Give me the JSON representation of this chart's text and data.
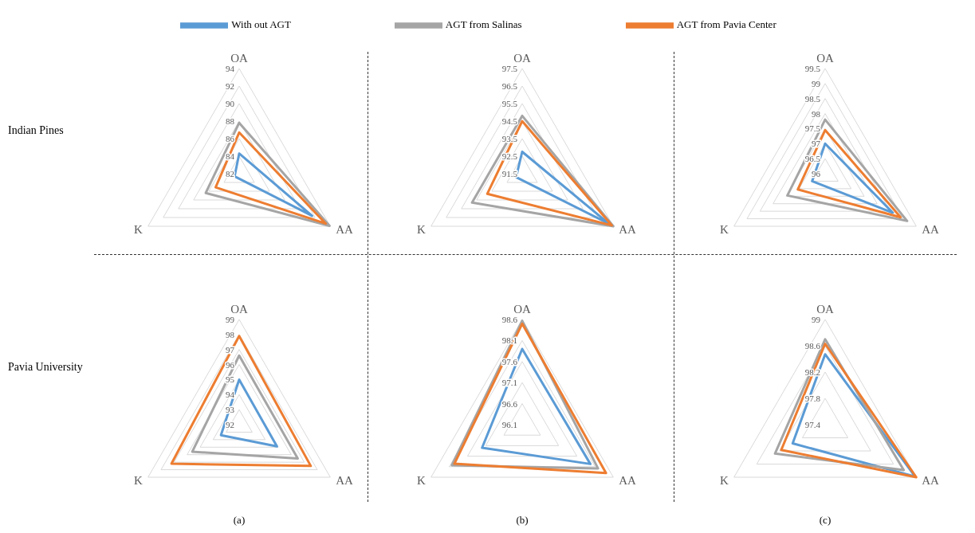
{
  "chart_data": [
    {
      "type": "radar",
      "ylabel": "Indian Pines",
      "legend": "top",
      "categories": [
        "OA",
        "AA",
        "K"
      ],
      "ylim": [
        82,
        94
      ],
      "yticks": [
        82,
        84,
        86,
        88,
        90,
        92,
        94
      ],
      "series": [
        {
          "name": "With out AGT",
          "color": "#5b9bd5",
          "values": [
            84.3,
            91.6,
            82.6
          ]
        },
        {
          "name": "AGT from Salinas",
          "color": "#a5a5a5",
          "values": [
            87.8,
            93.9,
            86.4
          ]
        },
        {
          "name": "AGT from Pavia Center",
          "color": "#ed7d31",
          "values": [
            86.7,
            93.4,
            85.1
          ]
        }
      ]
    },
    {
      "type": "radar",
      "categories": [
        "OA",
        "AA",
        "K"
      ],
      "ylim": [
        91.5,
        97.5
      ],
      "yticks": [
        91.5,
        92.5,
        93.5,
        94.5,
        95.5,
        96.5,
        97.5
      ],
      "series": [
        {
          "color": "#5b9bd5",
          "values": [
            92.75,
            97.2,
            91.9
          ]
        },
        {
          "color": "#a5a5a5",
          "values": [
            94.8,
            97.5,
            94.8
          ]
        },
        {
          "color": "#ed7d31",
          "values": [
            94.5,
            97.4,
            93.8
          ]
        }
      ]
    },
    {
      "type": "radar",
      "categories": [
        "OA",
        "AA",
        "K"
      ],
      "ylim": [
        96,
        99.5
      ],
      "yticks": [
        96,
        96.5,
        97,
        97.5,
        98,
        98.5,
        99,
        99.5
      ],
      "series": [
        {
          "color": "#5b9bd5",
          "values": [
            97.0,
            98.6,
            96.5
          ]
        },
        {
          "color": "#a5a5a5",
          "values": [
            97.8,
            99.15,
            97.45
          ]
        },
        {
          "color": "#ed7d31",
          "values": [
            97.45,
            98.9,
            97.05
          ]
        }
      ]
    },
    {
      "type": "radar",
      "ylabel": "Pavia University",
      "xlabel": "(a)",
      "categories": [
        "OA",
        "AA",
        "K"
      ],
      "ylim": [
        92,
        99
      ],
      "yticks": [
        92,
        93,
        94,
        95,
        96,
        97,
        98,
        99
      ],
      "series": [
        {
          "color": "#5b9bd5",
          "values": [
            95.0,
            94.9,
            93.4
          ]
        },
        {
          "color": "#a5a5a5",
          "values": [
            96.6,
            96.5,
            95.6
          ]
        },
        {
          "color": "#ed7d31",
          "values": [
            97.9,
            97.5,
            97.2
          ]
        }
      ]
    },
    {
      "type": "radar",
      "xlabel": "(b)",
      "categories": [
        "OA",
        "AA",
        "K"
      ],
      "ylim": [
        96.1,
        98.6
      ],
      "yticks": [
        96.1,
        96.6,
        97.1,
        97.6,
        98.1,
        98.6
      ],
      "series": [
        {
          "color": "#5b9bd5",
          "values": [
            97.9,
            97.97,
            97.2
          ]
        },
        {
          "color": "#a5a5a5",
          "values": [
            98.57,
            98.18,
            98.03
          ]
        },
        {
          "color": "#ed7d31",
          "values": [
            98.5,
            98.4,
            97.96
          ]
        }
      ]
    },
    {
      "type": "radar",
      "xlabel": "(c)",
      "categories": [
        "OA",
        "AA",
        "K"
      ],
      "ylim": [
        97.4,
        99
      ],
      "yticks": [
        97.4,
        97.8,
        98.2,
        98.6,
        99
      ],
      "series": [
        {
          "color": "#5b9bd5",
          "values": [
            98.47,
            98.98,
            97.97
          ]
        },
        {
          "color": "#a5a5a5",
          "values": [
            98.7,
            98.78,
            98.28
          ]
        },
        {
          "color": "#ed7d31",
          "values": [
            98.63,
            99.0,
            98.17
          ]
        }
      ]
    }
  ]
}
